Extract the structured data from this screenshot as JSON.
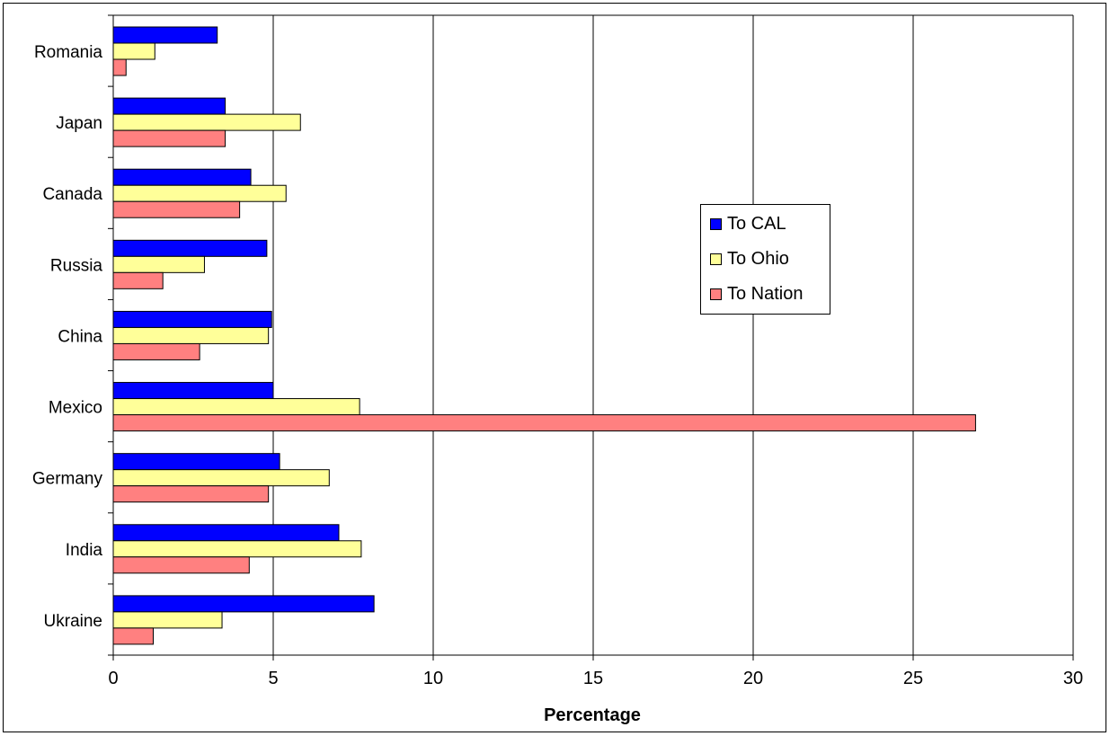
{
  "chart_data": {
    "type": "bar",
    "orientation": "horizontal",
    "title": "",
    "xlabel": "Percentage",
    "ylabel": "",
    "xlim": [
      0,
      30
    ],
    "x_ticks": [
      "0",
      "5",
      "10",
      "15",
      "20",
      "25",
      "30"
    ],
    "categories": [
      "Romania",
      "Japan",
      "Canada",
      "Russia",
      "China",
      "Mexico",
      "Germany",
      "India",
      "Ukraine"
    ],
    "series": [
      {
        "name": "To CAL",
        "color": "#0000ff",
        "values": [
          3.25,
          3.5,
          4.3,
          4.8,
          4.95,
          5.0,
          5.2,
          7.05,
          8.15
        ]
      },
      {
        "name": "To Ohio",
        "color": "#ffff99",
        "values": [
          1.3,
          5.85,
          5.4,
          2.85,
          4.85,
          7.7,
          6.75,
          7.75,
          3.4
        ]
      },
      {
        "name": "To Nation",
        "color": "#ff8080",
        "values": [
          0.4,
          3.5,
          3.95,
          1.55,
          2.7,
          26.95,
          4.85,
          4.25,
          1.25
        ]
      }
    ],
    "grid": "vertical",
    "legend_position": "right-center"
  }
}
